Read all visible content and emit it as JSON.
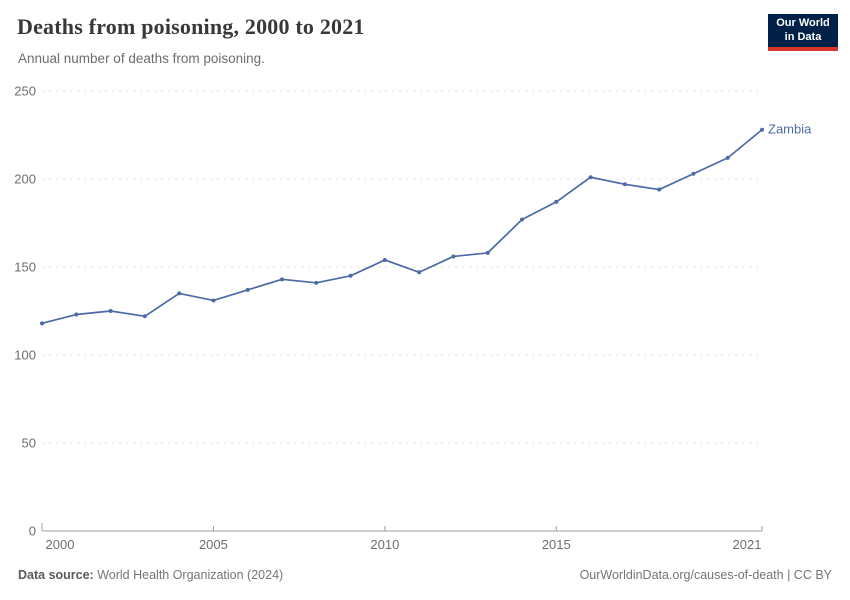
{
  "header": {
    "title": "Deaths from poisoning, 2000 to 2021",
    "subtitle": "Annual number of deaths from poisoning."
  },
  "logo": {
    "line1": "Our World",
    "line2": "in Data",
    "bg_color": "#002147",
    "accent_color": "#d8352a"
  },
  "chart_data": {
    "type": "line",
    "title": "Deaths from poisoning, 2000 to 2021",
    "subtitle": "Annual number of deaths from poisoning.",
    "xlabel": "",
    "ylabel": "",
    "x": [
      2000,
      2001,
      2002,
      2003,
      2004,
      2005,
      2006,
      2007,
      2008,
      2009,
      2010,
      2011,
      2012,
      2013,
      2014,
      2015,
      2016,
      2017,
      2018,
      2019,
      2020,
      2021
    ],
    "series": [
      {
        "name": "Zambia",
        "color": "#4c6aa5",
        "values": [
          118,
          123,
          125,
          122,
          135,
          131,
          137,
          143,
          141,
          145,
          154,
          147,
          156,
          158,
          177,
          187,
          201,
          197,
          194,
          203,
          212,
          228
        ]
      }
    ],
    "ylim": [
      0,
      250
    ],
    "yticks": [
      0,
      50,
      100,
      150,
      200,
      250
    ],
    "xticks": [
      2000,
      2005,
      2010,
      2015,
      2021
    ],
    "grid": "horizontal-dashed",
    "legend_position": "end-of-line",
    "grid_color": "#e0e0e0",
    "axis_color": "#9e9e9e",
    "tick_label_color": "#6e6e6e"
  },
  "footer": {
    "source_label": "Data source:",
    "source": "World Health Organization (2024)",
    "credit": "OurWorldinData.org/causes-of-death | CC BY"
  }
}
